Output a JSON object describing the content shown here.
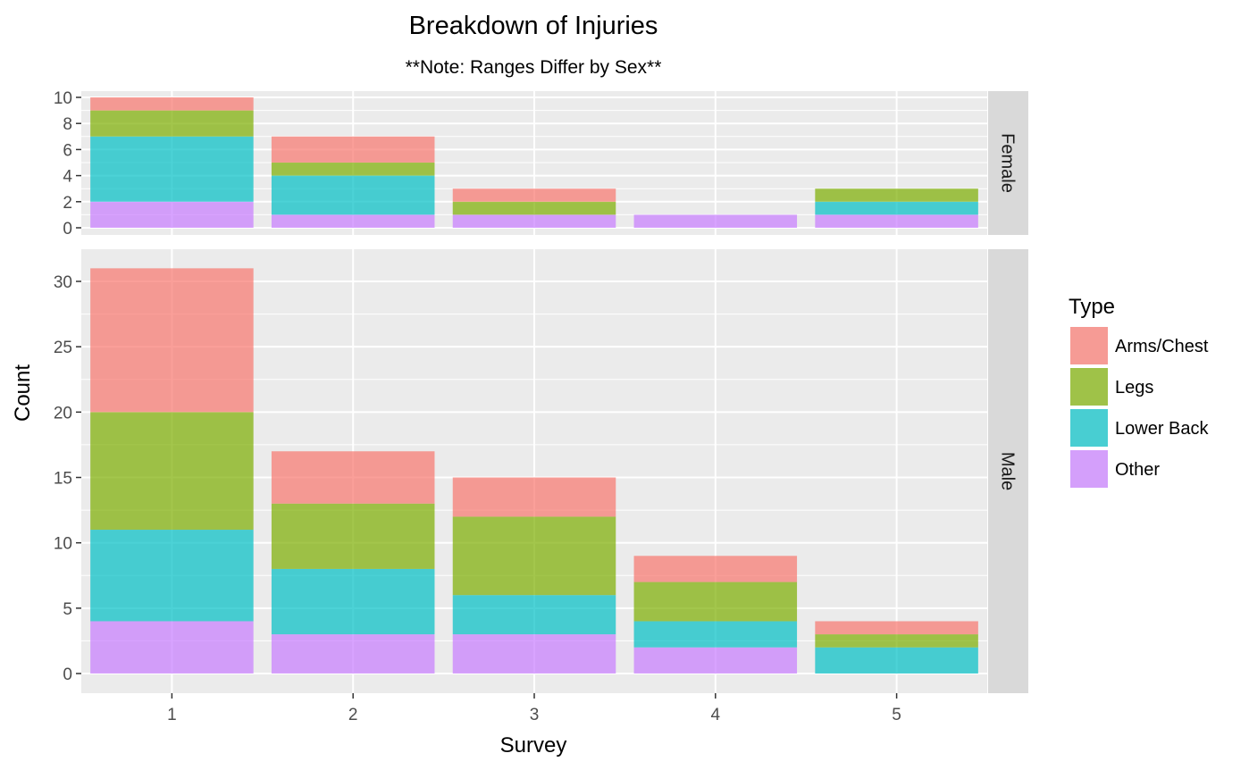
{
  "chart_data": {
    "type": "bar",
    "stacked": true,
    "faceted": true,
    "title": "Breakdown of Injuries",
    "subtitle": "**Note: Ranges Differ by Sex**",
    "xlabel": "Survey",
    "ylabel": "Count",
    "categories": [
      "1",
      "2",
      "3",
      "4",
      "5"
    ],
    "legend": {
      "title": "Type",
      "position": "right",
      "entries": [
        "Arms/Chest",
        "Legs",
        "Lower Back",
        "Other"
      ]
    },
    "colors": {
      "Arms/Chest": "#F8766D",
      "Legs": "#7CAE00",
      "Lower Back": "#00BFC4",
      "Other": "#C77CFF"
    },
    "grid": true,
    "panels": [
      {
        "strip": "Female",
        "ylim": [
          0,
          10
        ],
        "yticks": [
          0,
          2,
          4,
          6,
          8,
          10
        ],
        "series": [
          {
            "name": "Other",
            "values": [
              2,
              1,
              1,
              1,
              1
            ]
          },
          {
            "name": "Lower Back",
            "values": [
              5,
              3,
              0,
              0,
              1
            ]
          },
          {
            "name": "Legs",
            "values": [
              2,
              1,
              1,
              0,
              1
            ]
          },
          {
            "name": "Arms/Chest",
            "values": [
              1,
              2,
              1,
              0,
              0
            ]
          }
        ]
      },
      {
        "strip": "Male",
        "ylim": [
          0,
          31
        ],
        "yticks": [
          0,
          5,
          10,
          15,
          20,
          25,
          30
        ],
        "series": [
          {
            "name": "Other",
            "values": [
              4,
              3,
              3,
              2,
              0
            ]
          },
          {
            "name": "Lower Back",
            "values": [
              7,
              5,
              3,
              2,
              2
            ]
          },
          {
            "name": "Legs",
            "values": [
              9,
              5,
              6,
              3,
              1
            ]
          },
          {
            "name": "Arms/Chest",
            "values": [
              11,
              4,
              3,
              2,
              1
            ]
          }
        ]
      }
    ]
  }
}
